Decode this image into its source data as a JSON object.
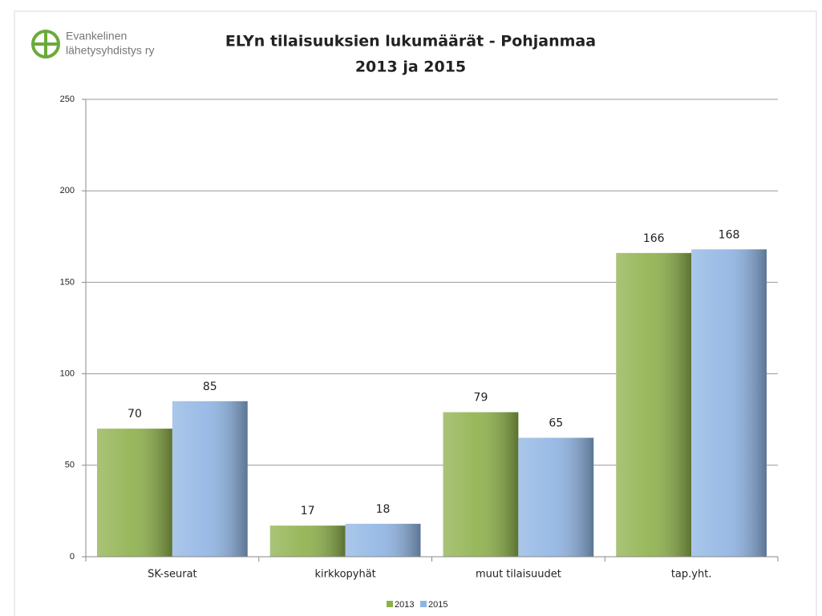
{
  "logo": {
    "lines": [
      "Evankelinen",
      "lähetysyhdistys ry"
    ]
  },
  "chart_data": {
    "type": "bar",
    "title": [
      "ELYn tilaisuuksien lukumäärät - Pohjanmaa",
      "2013 ja 2015"
    ],
    "categories": [
      "SK-seurat",
      "kirkkopyhät",
      "muut tilaisuudet",
      "tap.yht."
    ],
    "series": [
      {
        "name": "2013",
        "color": "#8db04a",
        "values": [
          70,
          17,
          79,
          166
        ]
      },
      {
        "name": "2015",
        "color": "#8fb4e3",
        "values": [
          85,
          18,
          65,
          168
        ]
      }
    ],
    "ylim": [
      0,
      250
    ],
    "yticks": [
      0,
      50,
      100,
      150,
      200,
      250
    ],
    "grid": true,
    "legend": "bottom"
  }
}
